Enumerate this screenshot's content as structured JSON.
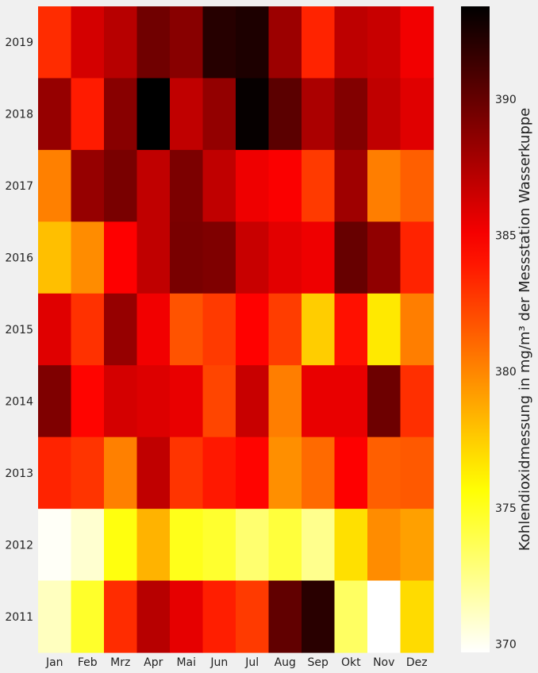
{
  "chart_data": {
    "type": "heatmap",
    "title": "",
    "xlabel": "",
    "ylabel": "",
    "colorbar_label": "Kohlendioxidmessung in mg/m³ der Messstation Wasserkuppe",
    "colormap": "hot_r",
    "vmin": 369.7,
    "vmax": 393.4,
    "colorbar_ticks": [
      370,
      375,
      380,
      385,
      390
    ],
    "columns": [
      "Jan",
      "Feb",
      "Mrz",
      "Apr",
      "Mai",
      "Jun",
      "Jul",
      "Aug",
      "Sep",
      "Okt",
      "Nov",
      "Dez"
    ],
    "rows": [
      "2019",
      "2018",
      "2017",
      "2016",
      "2015",
      "2014",
      "2013",
      "2012",
      "2011"
    ],
    "values": [
      [
        383.2,
        386.2,
        387.2,
        389.6,
        388.8,
        392.1,
        392.4,
        388.1,
        383.5,
        387.0,
        386.6,
        385.2
      ],
      [
        388.3,
        383.8,
        388.8,
        393.4,
        386.9,
        388.4,
        393.2,
        390.3,
        387.6,
        389.0,
        386.9,
        385.8
      ],
      [
        380.2,
        388.3,
        389.3,
        386.9,
        389.2,
        386.9,
        385.3,
        384.9,
        382.7,
        388.0,
        380.3,
        381.4
      ],
      [
        378.0,
        379.8,
        384.8,
        386.9,
        389.3,
        389.1,
        386.6,
        385.7,
        385.3,
        389.9,
        388.5,
        383.5
      ],
      [
        385.8,
        383.0,
        388.3,
        385.2,
        381.8,
        382.7,
        384.7,
        382.6,
        377.5,
        384.2,
        376.5,
        380.3
      ],
      [
        389.1,
        384.6,
        386.2,
        385.9,
        385.5,
        382.3,
        386.6,
        380.3,
        385.5,
        385.5,
        389.7,
        383.1
      ],
      [
        383.5,
        382.9,
        380.2,
        386.9,
        382.9,
        383.9,
        384.6,
        379.7,
        381.0,
        384.8,
        381.4,
        381.6
      ],
      [
        369.9,
        370.8,
        375.4,
        378.4,
        375.1,
        374.6,
        373.1,
        374.3,
        372.4,
        376.8,
        379.8,
        379.1
      ],
      [
        371.2,
        374.7,
        383.2,
        387.2,
        385.6,
        383.7,
        382.7,
        390.1,
        392.0,
        373.4,
        369.7,
        377.0
      ]
    ]
  }
}
